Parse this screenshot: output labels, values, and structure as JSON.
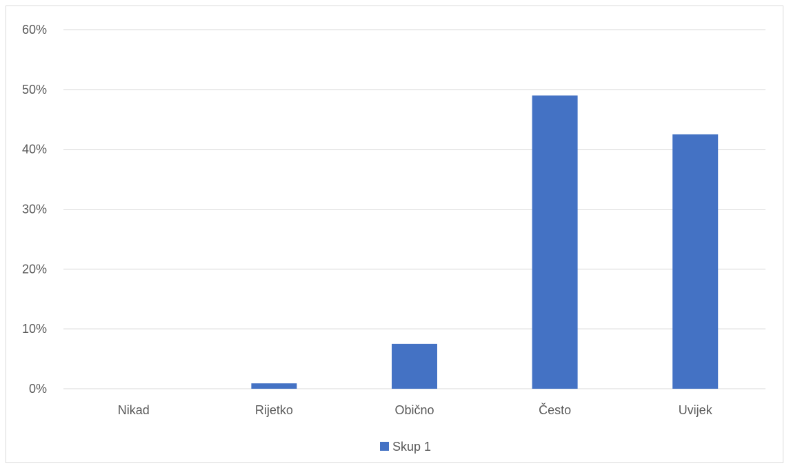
{
  "chart_data": {
    "type": "bar",
    "categories": [
      "Nikad",
      "Rijetko",
      "Obično",
      "Često",
      "Uvijek"
    ],
    "series": [
      {
        "name": "Skup 1",
        "values": [
          0,
          0.9,
          7.5,
          49,
          42.5
        ],
        "color": "#4472c4"
      }
    ],
    "yticks": [
      "0%",
      "10%",
      "20%",
      "30%",
      "40%",
      "50%",
      "60%"
    ],
    "ylim": [
      0,
      60
    ],
    "grid": true,
    "gridcolor": "#d9d9d9",
    "legend_position": "bottom"
  }
}
